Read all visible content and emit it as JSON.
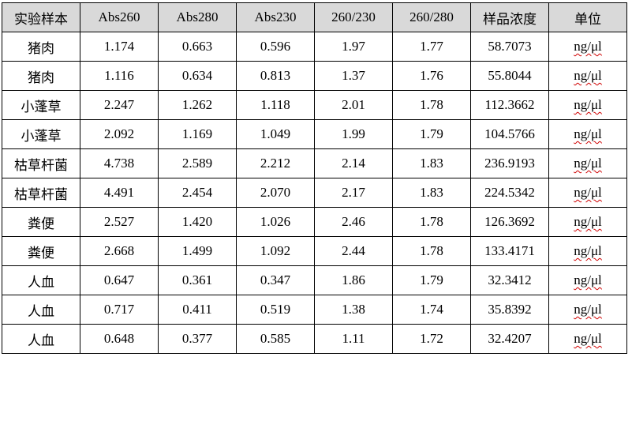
{
  "table": {
    "headers": [
      "实验样本",
      "Abs260",
      "Abs280",
      "Abs230",
      "260/230",
      "260/280",
      "样品浓度",
      "单位"
    ],
    "rows": [
      [
        "猪肉",
        "1.174",
        "0.663",
        "0.596",
        "1.97",
        "1.77",
        "58.7073",
        "ng/μl"
      ],
      [
        "猪肉",
        "1.116",
        "0.634",
        "0.813",
        "1.37",
        "1.76",
        "55.8044",
        "ng/μl"
      ],
      [
        "小蓬草",
        "2.247",
        "1.262",
        "1.118",
        "2.01",
        "1.78",
        "112.3662",
        "ng/μl"
      ],
      [
        "小蓬草",
        "2.092",
        "1.169",
        "1.049",
        "1.99",
        "1.79",
        "104.5766",
        "ng/μl"
      ],
      [
        "枯草杆菌",
        "4.738",
        "2.589",
        "2.212",
        "2.14",
        "1.83",
        "236.9193",
        "ng/μl"
      ],
      [
        "枯草杆菌",
        "4.491",
        "2.454",
        "2.070",
        "2.17",
        "1.83",
        "224.5342",
        "ng/μl"
      ],
      [
        "粪便",
        "2.527",
        "1.420",
        "1.026",
        "2.46",
        "1.78",
        "126.3692",
        "ng/μl"
      ],
      [
        "粪便",
        "2.668",
        "1.499",
        "1.092",
        "2.44",
        "1.78",
        "133.4171",
        "ng/μl"
      ],
      [
        "人血",
        "0.647",
        "0.361",
        "0.347",
        "1.86",
        "1.79",
        "32.3412",
        "ng/μl"
      ],
      [
        "人血",
        "0.717",
        "0.411",
        "0.519",
        "1.38",
        "1.74",
        "35.8392",
        "ng/μl"
      ],
      [
        "人血",
        "0.648",
        "0.377",
        "0.585",
        "1.11",
        "1.72",
        "32.4207",
        "ng/μl"
      ]
    ]
  },
  "colors": {
    "header_bg": "#d9d9d9",
    "border": "#000000",
    "spellcheck_underline": "#d00000"
  }
}
